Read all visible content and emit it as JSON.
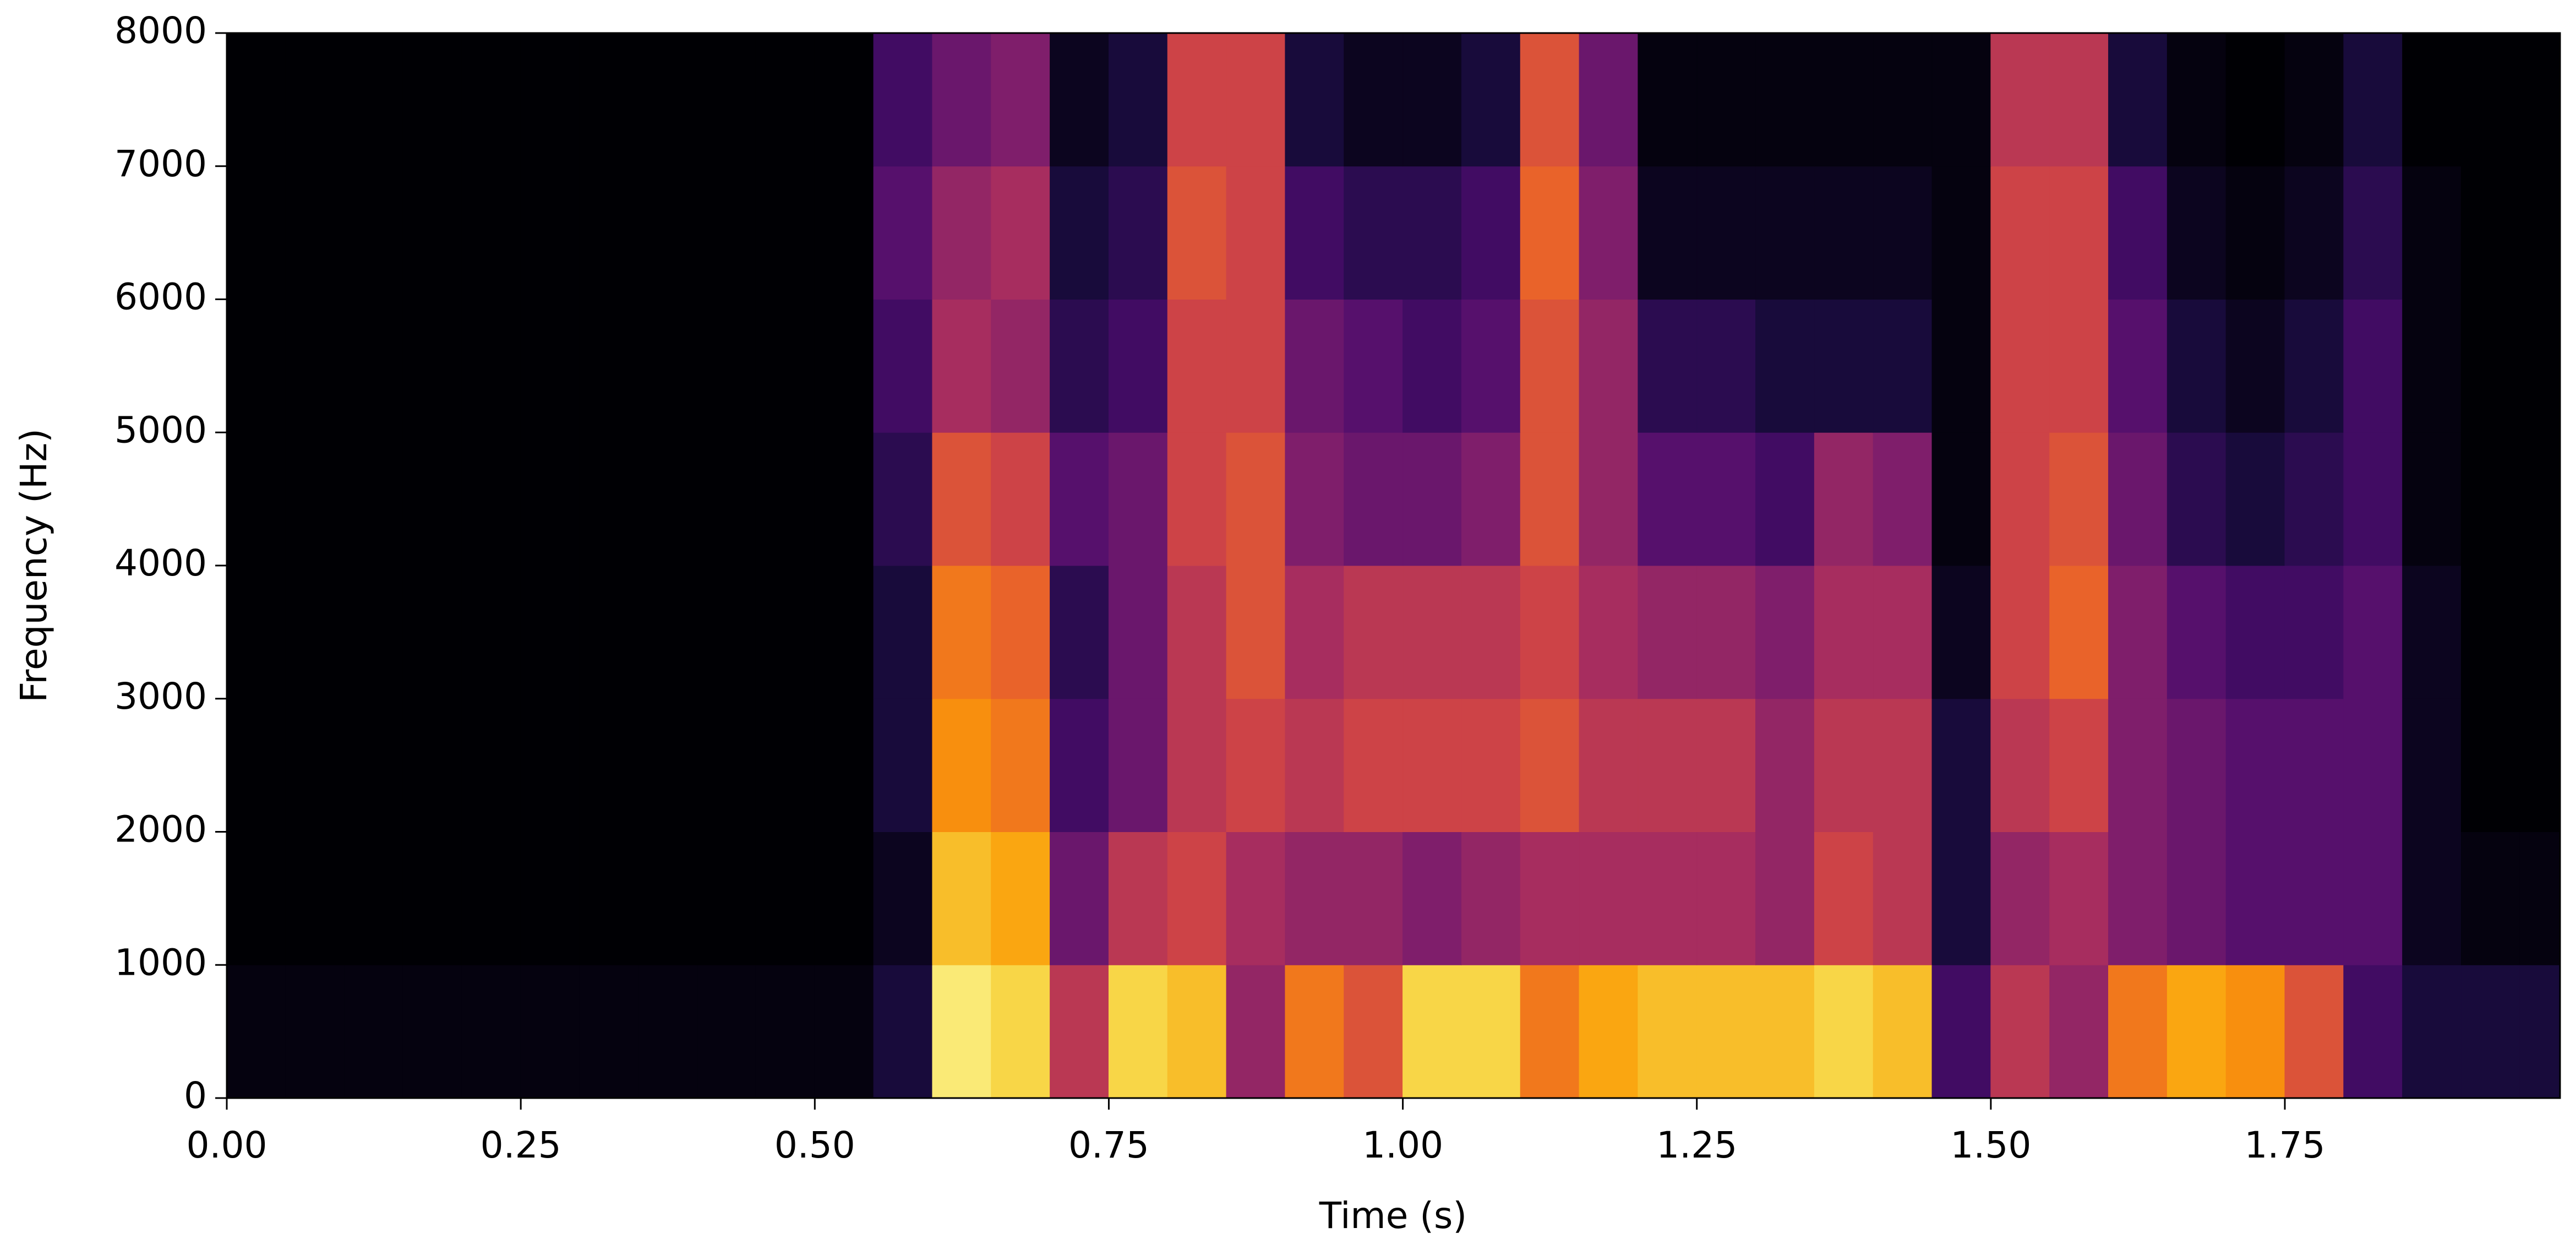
{
  "chart_data": {
    "type": "spectrogram",
    "x_label": "Time (s)",
    "y_label": "Frequency (Hz)",
    "xlim": [
      0,
      1.984
    ],
    "ylim": [
      0,
      8000
    ],
    "xticks": [
      {
        "value": 0,
        "label": "0.00"
      },
      {
        "value": 0.25,
        "label": "0.25"
      },
      {
        "value": 0.5,
        "label": "0.50"
      },
      {
        "value": 0.75,
        "label": "0.75"
      },
      {
        "value": 1,
        "label": "1.00"
      },
      {
        "value": 1.25,
        "label": "1.25"
      },
      {
        "value": 1.5,
        "label": "1.50"
      },
      {
        "value": 1.75,
        "label": "1.75"
      }
    ],
    "yticks": [
      0,
      1000,
      2000,
      3000,
      4000,
      5000,
      6000,
      7000,
      8000
    ],
    "colors": [
      "#000004",
      "#1b0c41",
      "#4a0c6b",
      "#781c6d",
      "#a52c60",
      "#cf4446",
      "#ed6925",
      "#fb9b06",
      "#f7d13d",
      "#fcffa4"
    ],
    "time_edges": [
      0,
      0.05,
      0.1,
      0.15,
      0.2,
      0.25,
      0.3,
      0.35,
      0.4,
      0.45,
      0.5,
      0.55,
      0.6,
      0.65,
      0.7,
      0.75,
      0.8,
      0.85,
      0.9,
      0.95,
      1,
      1.05,
      1.1,
      1.15,
      1.2,
      1.25,
      1.3,
      1.35,
      1.4,
      1.45,
      1.5,
      1.55,
      1.6,
      1.65,
      1.7,
      1.75,
      1.8,
      1.85,
      1.9,
      1.95,
      2
    ],
    "freq_edges": [
      0,
      1000,
      2000,
      3000,
      4000,
      5000,
      6000,
      7000,
      8000
    ],
    "z": [
      [
        0.02,
        0.02,
        0.02,
        0.02,
        0.02,
        0.02,
        0.02,
        0.02,
        0.02,
        0.02,
        0.02,
        0.1,
        0.95,
        0.9,
        0.5,
        0.9,
        0.85,
        0.4,
        0.7,
        0.6,
        0.9,
        0.9,
        0.7,
        0.8,
        0.85,
        0.85,
        0.85,
        0.9,
        0.85,
        0.2,
        0.5,
        0.4,
        0.7,
        0.8,
        0.75,
        0.6,
        0.2,
        0.1,
        0.1,
        0.1
      ],
      [
        0,
        0,
        0,
        0,
        0,
        0,
        0,
        0,
        0,
        0,
        0,
        0.05,
        0.85,
        0.8,
        0.3,
        0.5,
        0.55,
        0.45,
        0.4,
        0.4,
        0.35,
        0.4,
        0.45,
        0.45,
        0.45,
        0.45,
        0.4,
        0.55,
        0.5,
        0.1,
        0.4,
        0.45,
        0.35,
        0.3,
        0.25,
        0.25,
        0.25,
        0.05,
        0.02,
        0.02
      ],
      [
        0,
        0,
        0,
        0,
        0,
        0,
        0,
        0,
        0,
        0,
        0,
        0.1,
        0.75,
        0.7,
        0.2,
        0.3,
        0.5,
        0.55,
        0.5,
        0.55,
        0.55,
        0.55,
        0.6,
        0.5,
        0.5,
        0.5,
        0.4,
        0.5,
        0.5,
        0.1,
        0.5,
        0.55,
        0.35,
        0.3,
        0.25,
        0.25,
        0.25,
        0.05,
        0,
        0
      ],
      [
        0,
        0,
        0,
        0,
        0,
        0,
        0,
        0,
        0,
        0,
        0,
        0.1,
        0.7,
        0.65,
        0.15,
        0.3,
        0.5,
        0.6,
        0.45,
        0.5,
        0.5,
        0.5,
        0.55,
        0.45,
        0.4,
        0.4,
        0.35,
        0.45,
        0.45,
        0.05,
        0.55,
        0.65,
        0.35,
        0.25,
        0.2,
        0.2,
        0.25,
        0.05,
        0,
        0
      ],
      [
        0,
        0,
        0,
        0,
        0,
        0,
        0,
        0,
        0,
        0,
        0,
        0.15,
        0.6,
        0.55,
        0.25,
        0.3,
        0.55,
        0.6,
        0.35,
        0.3,
        0.3,
        0.35,
        0.6,
        0.4,
        0.25,
        0.25,
        0.2,
        0.4,
        0.35,
        0.02,
        0.55,
        0.6,
        0.3,
        0.15,
        0.1,
        0.15,
        0.2,
        0.02,
        0,
        0
      ],
      [
        0,
        0,
        0,
        0,
        0,
        0,
        0,
        0,
        0,
        0,
        0,
        0.2,
        0.45,
        0.4,
        0.15,
        0.2,
        0.55,
        0.55,
        0.3,
        0.25,
        0.2,
        0.25,
        0.6,
        0.4,
        0.15,
        0.15,
        0.1,
        0.1,
        0.1,
        0.02,
        0.55,
        0.55,
        0.25,
        0.1,
        0.05,
        0.1,
        0.2,
        0.02,
        0,
        0
      ],
      [
        0,
        0,
        0,
        0,
        0,
        0,
        0,
        0,
        0,
        0,
        0,
        0.25,
        0.4,
        0.45,
        0.1,
        0.15,
        0.6,
        0.55,
        0.2,
        0.15,
        0.15,
        0.2,
        0.65,
        0.35,
        0.05,
        0.05,
        0.05,
        0.05,
        0.05,
        0.02,
        0.55,
        0.55,
        0.2,
        0.05,
        0.02,
        0.05,
        0.15,
        0.02,
        0,
        0
      ],
      [
        0,
        0,
        0,
        0,
        0,
        0,
        0,
        0,
        0,
        0,
        0,
        0.2,
        0.3,
        0.35,
        0.05,
        0.1,
        0.55,
        0.55,
        0.1,
        0.05,
        0.05,
        0.1,
        0.6,
        0.3,
        0.02,
        0.02,
        0.02,
        0.02,
        0.02,
        0.02,
        0.5,
        0.5,
        0.1,
        0.02,
        0,
        0.02,
        0.1,
        0,
        0,
        0
      ]
    ]
  }
}
